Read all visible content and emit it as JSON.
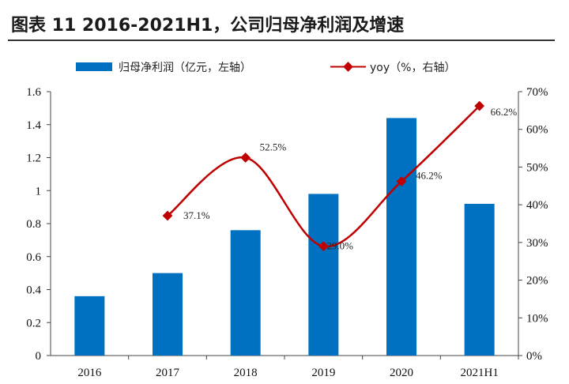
{
  "figure": {
    "title": "图表 11 2016-2021H1，公司归母净利润及增速"
  },
  "colors": {
    "bar": "#0070c0",
    "line": "#c00000",
    "axis": "#444444"
  },
  "chart_data": {
    "type": "bar+line",
    "categories": [
      "2016",
      "2017",
      "2018",
      "2019",
      "2020",
      "2021H1"
    ],
    "tick_labels": [
      "2016",
      "2017",
      "2018",
      "2019",
      "2020",
      "2021H1"
    ],
    "series": [
      {
        "name": "归母净利润（亿元，左轴）",
        "type": "bar",
        "axis": "left",
        "values": [
          0.36,
          0.5,
          0.76,
          0.98,
          1.44,
          0.92
        ]
      },
      {
        "name": "yoy（%，右轴）",
        "type": "line",
        "axis": "right",
        "values": [
          null,
          37.1,
          52.5,
          29.0,
          46.2,
          66.2
        ],
        "labels": [
          "",
          "37.1%",
          "52.5%",
          "29.0%",
          "46.2%",
          "66.2%"
        ]
      }
    ],
    "left_axis": {
      "ylim": [
        0,
        1.6
      ],
      "ticks": [
        "0",
        "0.2",
        "0.4",
        "0.6",
        "0.8",
        "1",
        "1.2",
        "1.4",
        "1.6"
      ]
    },
    "right_axis": {
      "ylim": [
        0,
        70
      ],
      "ticks": [
        "0%",
        "10%",
        "20%",
        "30%",
        "40%",
        "50%",
        "60%",
        "70%"
      ]
    },
    "grid": false,
    "legend": "top"
  }
}
